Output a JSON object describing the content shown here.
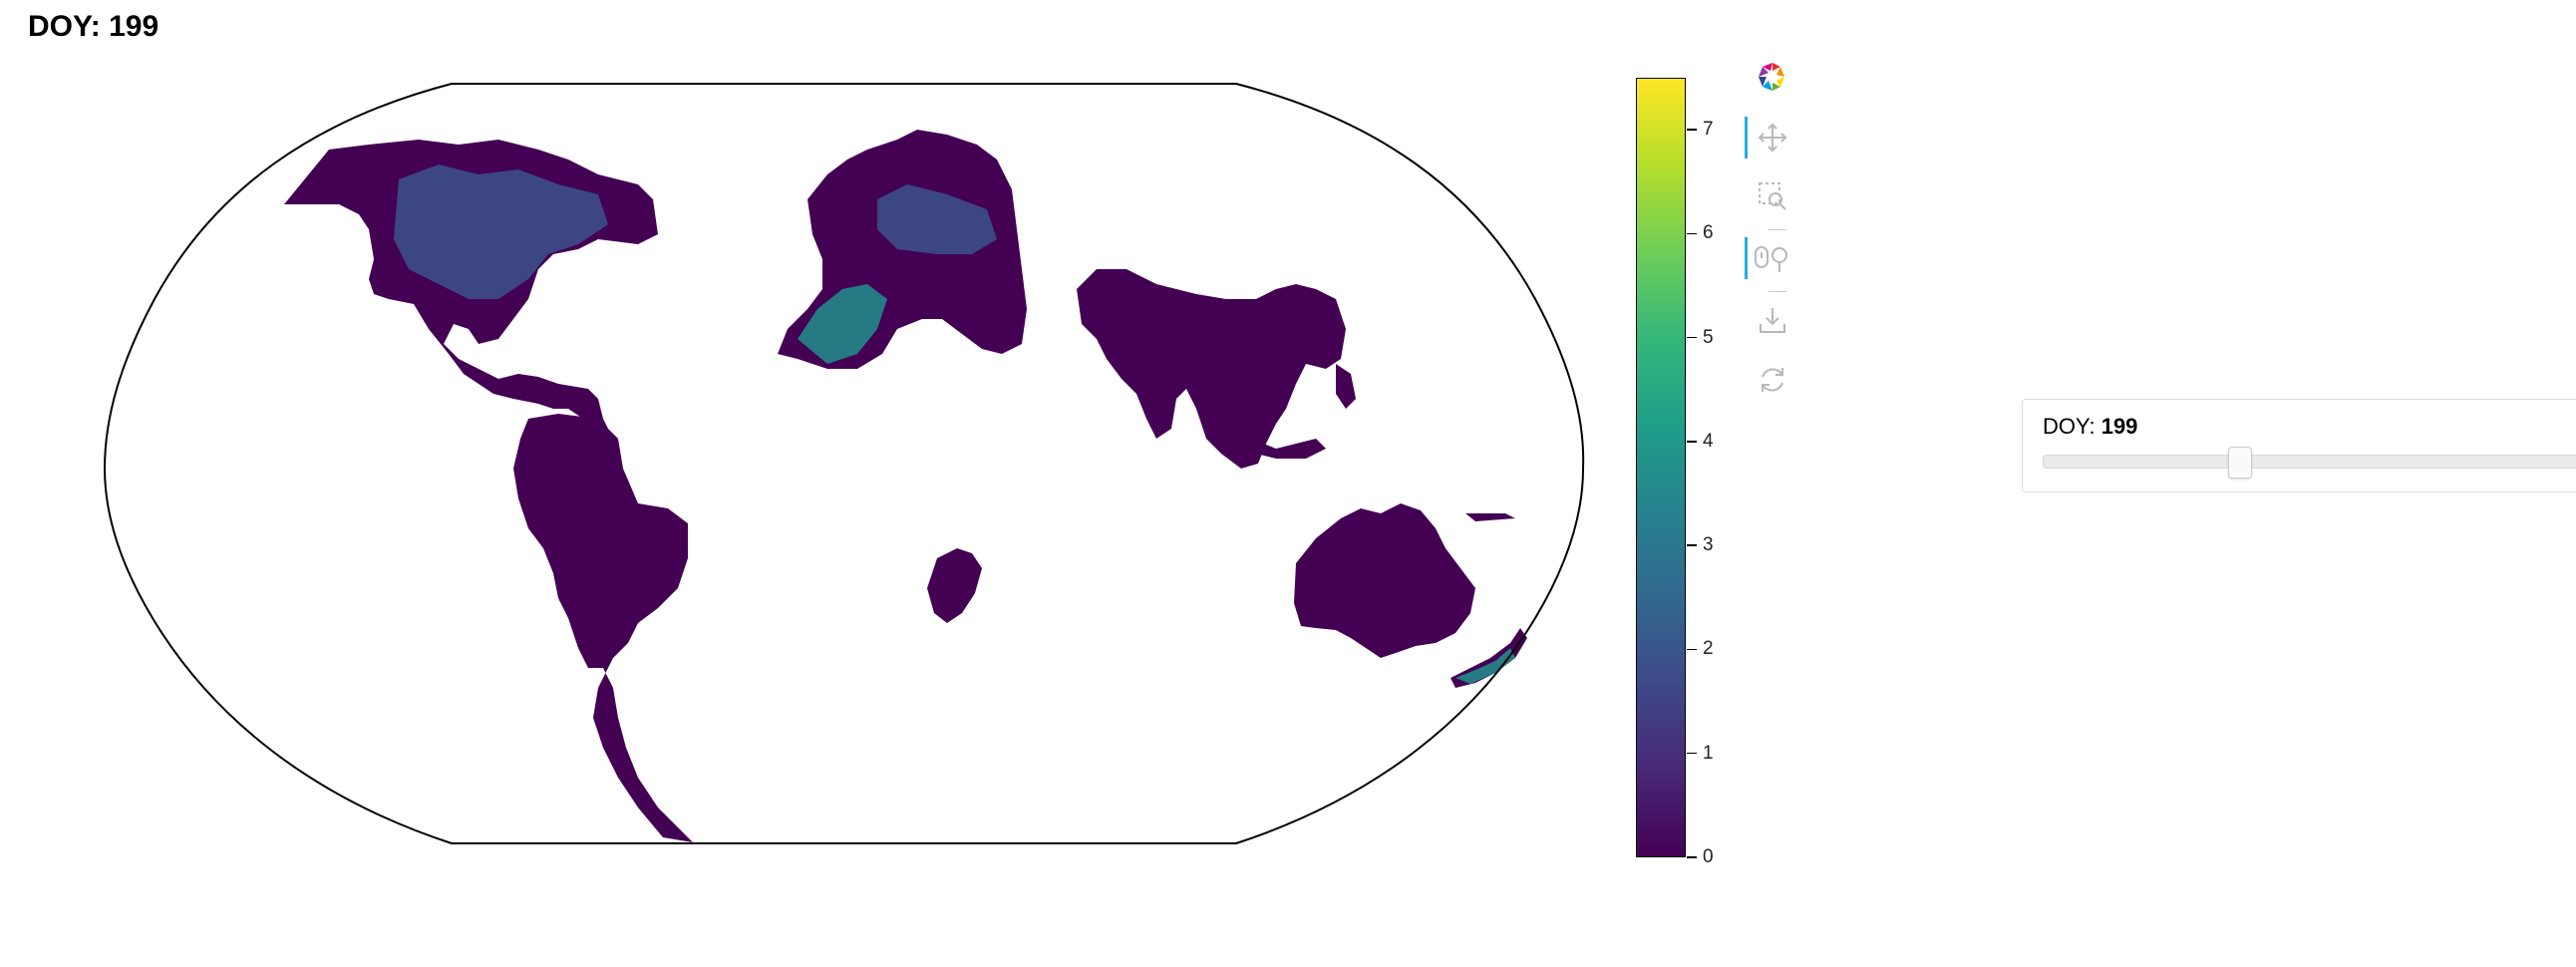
{
  "plot": {
    "title": "DOY: 199"
  },
  "colors": {
    "land_low": "#440154",
    "land_mid": "#3b528b",
    "land_high": "#21908d",
    "outline": "#000000",
    "toolbar_active": "#26aae1",
    "colorbar_stops": [
      "#440154",
      "#482878",
      "#3e4989",
      "#31688e",
      "#26828e",
      "#1f9e89",
      "#35b779",
      "#6ece58",
      "#b5de2b",
      "#fde725"
    ]
  },
  "colorbar": {
    "min": 0,
    "max": 7.5,
    "ticks": [
      {
        "value": 0,
        "label": "0"
      },
      {
        "value": 1,
        "label": "1"
      },
      {
        "value": 2,
        "label": "2"
      },
      {
        "value": 3,
        "label": "3"
      },
      {
        "value": 4,
        "label": "4"
      },
      {
        "value": 5,
        "label": "5"
      },
      {
        "value": 6,
        "label": "6"
      },
      {
        "value": 7,
        "label": "7"
      }
    ]
  },
  "toolbar": {
    "tools": [
      {
        "name": "bokeh-logo-icon",
        "icon": "bokeh-logo",
        "active": false
      },
      {
        "name": "pan-tool-icon",
        "icon": "pan",
        "active": true
      },
      {
        "name": "box-zoom-tool-icon",
        "icon": "box-zoom",
        "active": false
      },
      {
        "name": "wheel-zoom-tool-icon",
        "icon": "wheel-zoom",
        "active": true
      },
      {
        "name": "save-tool-icon",
        "icon": "save",
        "active": false
      },
      {
        "name": "reset-tool-icon",
        "icon": "reset",
        "active": false
      }
    ]
  },
  "slider": {
    "label": "DOY:",
    "value": "199",
    "fraction": 0.33
  }
}
